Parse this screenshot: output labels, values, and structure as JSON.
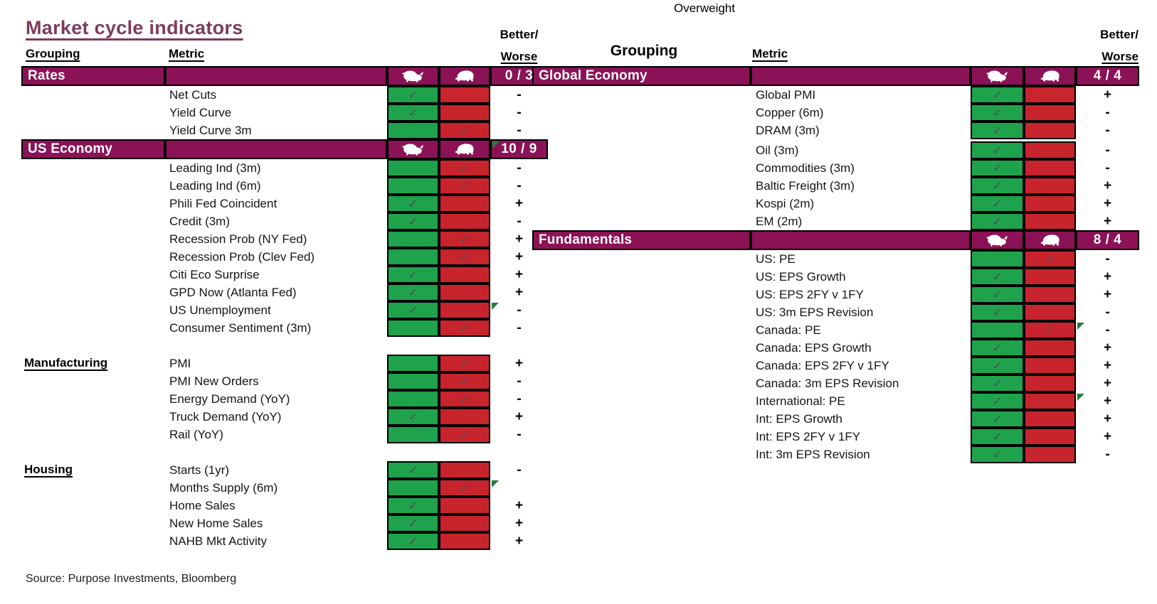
{
  "labels": {
    "grouping": "Grouping",
    "metric": "Metric",
    "better": "Better/",
    "worse": "Worse"
  },
  "icons": {
    "bull": "bull-icon",
    "bear": "bear-icon",
    "check": "check-icon",
    "marker": "comment-marker-icon"
  },
  "colors": {
    "purple": "#8B1256",
    "green": "#1FA24C",
    "red": "#C7242E",
    "check": "#4D4D55",
    "marker_green": "#217E3C",
    "title": "#7D3A5E"
  },
  "chart_data": {
    "type": "table",
    "title": "Market cycle indicators",
    "annotation": "Overweight",
    "source": "Source: Purpose Investments, Bloomberg",
    "columns": [
      "Grouping",
      "Metric",
      "Bull",
      "Bear",
      "Better/Worse"
    ],
    "tables": [
      {
        "side": "left",
        "sections": [
          {
            "grouping": "Rates",
            "header_style": "bar",
            "score": "0 / 3",
            "score_marker": false,
            "rows": [
              {
                "metric": "Net Cuts",
                "signal": "bull",
                "better_worse": "-"
              },
              {
                "metric": "Yield Curve",
                "signal": "bull",
                "better_worse": "-"
              },
              {
                "metric": "Yield Curve 3m",
                "signal": "bear",
                "better_worse": "-"
              }
            ]
          },
          {
            "grouping": "US Economy",
            "header_style": "bar",
            "score": "10 / 9",
            "score_marker": true,
            "rows": [
              {
                "metric": "Leading Ind (3m)",
                "signal": "bear",
                "better_worse": "-"
              },
              {
                "metric": "Leading Ind (6m)",
                "signal": "bear",
                "better_worse": "-"
              },
              {
                "metric": "Phili Fed Coincident",
                "signal": "bull",
                "better_worse": "+"
              },
              {
                "metric": "Credit (3m)",
                "signal": "bull",
                "better_worse": "-"
              },
              {
                "metric": "Recession Prob (NY Fed)",
                "signal": "bear",
                "better_worse": "+"
              },
              {
                "metric": "Recession Prob (Clev Fed)",
                "signal": "bear",
                "better_worse": "+"
              },
              {
                "metric": "Citi Eco Surprise",
                "signal": "bull",
                "better_worse": "+"
              },
              {
                "metric": "GPD Now (Atlanta Fed)",
                "signal": "bull",
                "better_worse": "+"
              },
              {
                "metric": "US Unemployment",
                "signal": "bull",
                "better_worse": "-",
                "marker": true
              },
              {
                "metric": "Consumer Sentiment (3m)",
                "signal": "bear",
                "better_worse": "-"
              }
            ]
          },
          {
            "grouping": "Manufacturing",
            "header_style": "text",
            "rows": [
              {
                "metric": "PMI",
                "signal": "bear",
                "better_worse": "+"
              },
              {
                "metric": "PMI New Orders",
                "signal": "bear",
                "better_worse": "-"
              },
              {
                "metric": "Energy Demand (YoY)",
                "signal": "bear",
                "better_worse": "-"
              },
              {
                "metric": "Truck Demand (YoY)",
                "signal": "bull",
                "better_worse": "+"
              },
              {
                "metric": "Rail (YoY)",
                "signal": "bear",
                "better_worse": "-"
              }
            ]
          },
          {
            "grouping": "Housing",
            "header_style": "text",
            "rows": [
              {
                "metric": "Starts (1yr)",
                "signal": "bull",
                "better_worse": "-"
              },
              {
                "metric": "Months Supply (6m)",
                "signal": "bear",
                "better_worse": "",
                "marker": true
              },
              {
                "metric": "Home Sales",
                "signal": "bull",
                "better_worse": "+"
              },
              {
                "metric": "New Home Sales",
                "signal": "bull",
                "better_worse": "+"
              },
              {
                "metric": "NAHB Mkt Activity",
                "signal": "bull",
                "better_worse": "+"
              }
            ]
          }
        ]
      },
      {
        "side": "right",
        "sections": [
          {
            "grouping": "Global Economy",
            "header_style": "bar",
            "score": "4 / 4",
            "score_marker": false,
            "rows": [
              {
                "metric": "Global PMI",
                "signal": "bull",
                "better_worse": "+"
              },
              {
                "metric": "Copper (6m)",
                "signal": "bull",
                "better_worse": "-"
              },
              {
                "metric": "DRAM (3m)",
                "signal": "bull",
                "better_worse": "-"
              },
              {
                "metric": "Oil (3m)",
                "signal": "bull",
                "better_worse": "-"
              },
              {
                "metric": "Commodities (3m)",
                "signal": "bull",
                "better_worse": "-"
              },
              {
                "metric": "Baltic Freight (3m)",
                "signal": "bull",
                "better_worse": "+"
              },
              {
                "metric": "Kospi (2m)",
                "signal": "bull",
                "better_worse": "+"
              },
              {
                "metric": "EM (2m)",
                "signal": "bull",
                "better_worse": "+"
              }
            ]
          },
          {
            "grouping": "Fundamentals",
            "header_style": "bar",
            "score": "8 / 4",
            "score_marker": false,
            "rows": [
              {
                "metric": "US: PE",
                "signal": "bear",
                "better_worse": "-"
              },
              {
                "metric": "US: EPS Growth",
                "signal": "bull",
                "better_worse": "+"
              },
              {
                "metric": "US: EPS 2FY v 1FY",
                "signal": "bull",
                "better_worse": "+"
              },
              {
                "metric": "US: 3m EPS Revision",
                "signal": "bull",
                "better_worse": "-"
              },
              {
                "metric": "Canada: PE",
                "signal": "bear",
                "better_worse": "-",
                "marker": true
              },
              {
                "metric": "Canada: EPS Growth",
                "signal": "bull",
                "better_worse": "+"
              },
              {
                "metric": "Canada: EPS 2FY v 1FY",
                "signal": "bull",
                "better_worse": "+"
              },
              {
                "metric": "Canada: 3m EPS Revision",
                "signal": "bull",
                "better_worse": "+"
              },
              {
                "metric": "International: PE",
                "signal": "bull",
                "better_worse": "+",
                "marker": true
              },
              {
                "metric": "Int: EPS Growth",
                "signal": "bull",
                "better_worse": "+"
              },
              {
                "metric": "Int: EPS 2FY v 1FY",
                "signal": "bull",
                "better_worse": "+"
              },
              {
                "metric": "Int: 3m EPS Revision",
                "signal": "bull",
                "better_worse": "-"
              }
            ]
          }
        ]
      }
    ]
  }
}
